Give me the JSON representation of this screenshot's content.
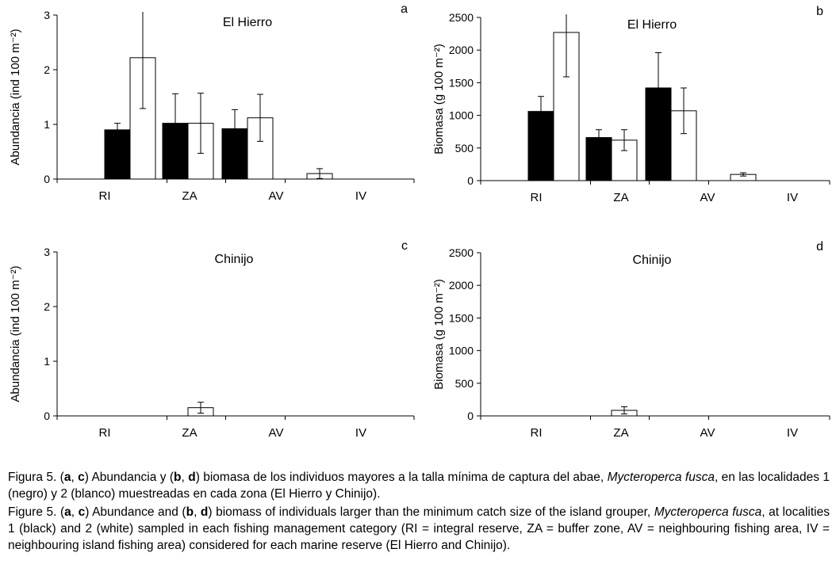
{
  "colors": {
    "locality1": "#000000",
    "locality2": "#ffffff",
    "axis": "#000000"
  },
  "chart_data": [
    {
      "type": "bar",
      "panel": "a",
      "title": "El Hierro",
      "ylabel": "Abundancia (ind 100 m⁻²)",
      "xlabel": "",
      "ylim": [
        0,
        3
      ],
      "yticks": [
        0,
        1,
        2,
        3
      ],
      "categories": [
        "RI",
        "ZA",
        "AV",
        "IV"
      ],
      "series": [
        {
          "name": "localidad 1 (negro)",
          "values": [
            0.9,
            1.02,
            0.92,
            0
          ],
          "errors": [
            0.12,
            0.54,
            0.35,
            0
          ]
        },
        {
          "name": "localidad 2 (blanco)",
          "values": [
            2.22,
            1.02,
            1.12,
            0.1
          ],
          "errors": [
            0.93,
            0.55,
            0.43,
            0.09
          ]
        }
      ]
    },
    {
      "type": "bar",
      "panel": "b",
      "title": "El Hierro",
      "ylabel": "Biomasa (g 100 m⁻²)",
      "xlabel": "",
      "ylim": [
        0,
        2500
      ],
      "yticks": [
        0,
        500,
        1000,
        1500,
        2000,
        2500
      ],
      "categories": [
        "RI",
        "ZA",
        "AV",
        "IV"
      ],
      "series": [
        {
          "name": "localidad 1 (negro)",
          "values": [
            1060,
            660,
            1420,
            0
          ],
          "errors": [
            230,
            120,
            540,
            0
          ]
        },
        {
          "name": "localidad 2 (blanco)",
          "values": [
            2270,
            620,
            1070,
            95
          ],
          "errors": [
            680,
            160,
            350,
            25
          ]
        }
      ]
    },
    {
      "type": "bar",
      "panel": "c",
      "title": "Chinijo",
      "ylabel": "Abundancia (ind 100 m⁻²)",
      "xlabel": "",
      "ylim": [
        0,
        3
      ],
      "yticks": [
        0,
        1,
        2,
        3
      ],
      "categories": [
        "RI",
        "ZA",
        "AV",
        "IV"
      ],
      "series": [
        {
          "name": "localidad 1 (negro)",
          "values": [
            0,
            0,
            0,
            0
          ],
          "errors": [
            0,
            0,
            0,
            0
          ]
        },
        {
          "name": "localidad 2 (blanco)",
          "values": [
            0,
            0.15,
            0,
            0
          ],
          "errors": [
            0,
            0.1,
            0,
            0
          ]
        }
      ]
    },
    {
      "type": "bar",
      "panel": "d",
      "title": "Chinijo",
      "ylabel": "Biomasa (g 100 m⁻²)",
      "xlabel": "",
      "ylim": [
        0,
        2500
      ],
      "yticks": [
        0,
        500,
        1000,
        1500,
        2000,
        2500
      ],
      "categories": [
        "RI",
        "ZA",
        "AV",
        "IV"
      ],
      "series": [
        {
          "name": "localidad 1 (negro)",
          "values": [
            0,
            0,
            0,
            0
          ],
          "errors": [
            0,
            0,
            0,
            0
          ]
        },
        {
          "name": "localidad 2 (blanco)",
          "values": [
            0,
            85,
            0,
            0
          ],
          "errors": [
            0,
            55,
            0,
            0
          ]
        }
      ]
    }
  ],
  "caption": {
    "es": {
      "label_a": "Figura",
      "label_b": " 5.",
      "p1": " (",
      "a": "a",
      "p2": ", ",
      "c": "c",
      "p3": ") Abundancia y (",
      "b": "b",
      "p4": ", ",
      "d": "d",
      "p5": ") biomasa de los individuos mayores a la talla mínima de captura del abae, ",
      "species": "Mycteroperca fusca",
      "p6": ", en las localidades 1 (negro) y 2 (blanco) muestreadas en cada zona (El Hierro y Chinijo)."
    },
    "en": {
      "label": "Figure 5.",
      "p1": " (",
      "a": "a",
      "p2": ", ",
      "c": "c",
      "p3": ") Abundance and (",
      "b": "b",
      "p4": ", ",
      "d": "d",
      "p5": ") biomass of individuals larger than the minimum catch size of the island grouper, ",
      "species": "Mycteroperca fusca",
      "p6": ", at localities 1 (black) and 2 (white) sampled in each fishing management category (RI = integral reserve, ZA = buffer zone, AV = neighbouring fishing area, IV = neighbouring island fishing area) considered for each marine reserve (El Hierro and Chinijo)."
    }
  }
}
